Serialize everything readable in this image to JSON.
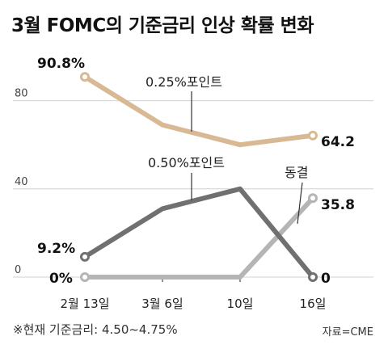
{
  "title": "3월 FOMC의 기준금리 인상 확률 변화",
  "footnote": "※현재 기준금리: 4.50~4.75%",
  "source": "자료=CME",
  "chart_data": {
    "type": "line",
    "categories": [
      "2월 13일",
      "3월 6일",
      "10일",
      "16일"
    ],
    "ylim": [
      0,
      100
    ],
    "yticks": [
      "0",
      "40",
      "80"
    ],
    "grid": true,
    "series": [
      {
        "name": "0.25%포인트",
        "values": [
          90.8,
          69.0,
          60.0,
          64.2
        ],
        "color": "#d9b894",
        "start_label": "90.8%",
        "end_label": "64.2"
      },
      {
        "name": "0.50%포인트",
        "values": [
          9.2,
          31.0,
          40.0,
          0
        ],
        "color": "#707070",
        "start_label": "9.2%",
        "end_label": "0"
      },
      {
        "name": "동결",
        "values": [
          0,
          0,
          0,
          35.8
        ],
        "color": "#b5b5b5",
        "start_label": "0%",
        "end_label": "35.8"
      }
    ]
  }
}
